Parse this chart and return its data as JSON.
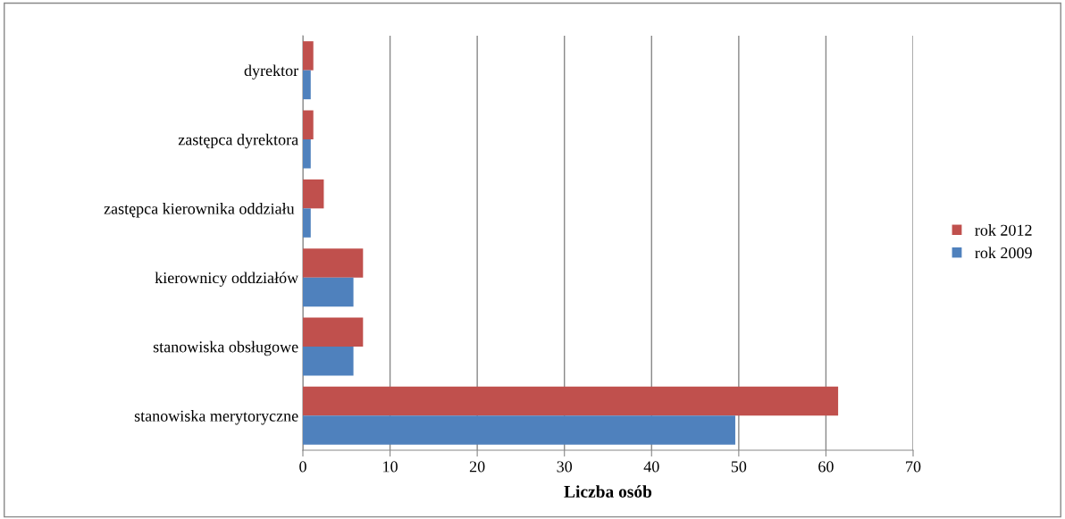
{
  "chart_data": {
    "type": "bar",
    "orientation": "horizontal",
    "xlabel": "Liczba osób",
    "categories": [
      "dyrektor",
      "zastępca dyrektora",
      "zastępca kierownika oddziału ",
      "kierownicy oddziałów",
      "stanowiska obsługowe",
      "stanowiska merytoryczne"
    ],
    "series": [
      {
        "name": "rok 2012",
        "color": "#c0504d",
        "values": [
          1.2,
          1.2,
          2.4,
          6.9,
          6.9,
          61.4
        ]
      },
      {
        "name": "rok 2009",
        "color": "#4f81bd",
        "values": [
          0.9,
          0.9,
          0.9,
          5.8,
          5.8,
          49.6
        ]
      }
    ],
    "xlim": [
      0,
      70
    ],
    "xticks": [
      0,
      10,
      20,
      30,
      40,
      50,
      60,
      70
    ],
    "grid": "x",
    "legend": "right"
  }
}
